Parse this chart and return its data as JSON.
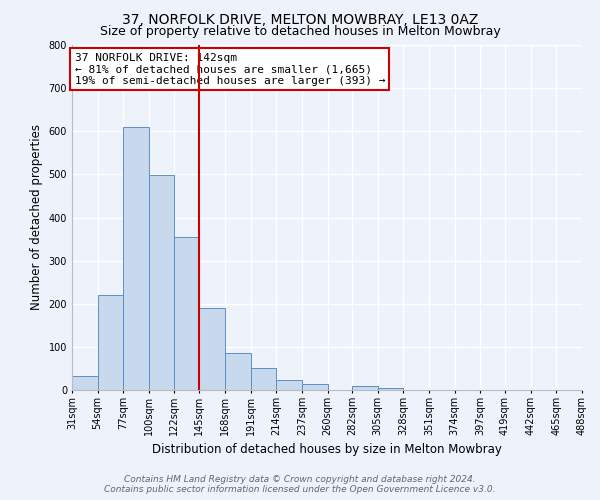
{
  "title": "37, NORFOLK DRIVE, MELTON MOWBRAY, LE13 0AZ",
  "subtitle": "Size of property relative to detached houses in Melton Mowbray",
  "xlabel": "Distribution of detached houses by size in Melton Mowbray",
  "ylabel": "Number of detached properties",
  "bar_color": "#c8d9ee",
  "bar_edge_color": "#5b8fc9",
  "background_color": "#eef2fa",
  "grid_color": "white",
  "bin_edges": [
    31,
    54,
    77,
    100,
    122,
    145,
    168,
    191,
    214,
    237,
    260,
    282,
    305,
    328,
    351,
    374,
    397,
    419,
    442,
    465,
    488
  ],
  "bin_labels": [
    "31sqm",
    "54sqm",
    "77sqm",
    "100sqm",
    "122sqm",
    "145sqm",
    "168sqm",
    "191sqm",
    "214sqm",
    "237sqm",
    "260sqm",
    "282sqm",
    "305sqm",
    "328sqm",
    "351sqm",
    "374sqm",
    "397sqm",
    "419sqm",
    "442sqm",
    "465sqm",
    "488sqm"
  ],
  "bar_heights": [
    33,
    220,
    610,
    498,
    355,
    190,
    85,
    50,
    24,
    14,
    0,
    10,
    5,
    0,
    0,
    0,
    0,
    0,
    0,
    0
  ],
  "ylim": [
    0,
    800
  ],
  "yticks": [
    0,
    100,
    200,
    300,
    400,
    500,
    600,
    700,
    800
  ],
  "vline_x": 145,
  "vline_color": "#cc0000",
  "annotation_title": "37 NORFOLK DRIVE: 142sqm",
  "annotation_line1": "← 81% of detached houses are smaller (1,665)",
  "annotation_line2": "19% of semi-detached houses are larger (393) →",
  "annotation_box_color": "white",
  "annotation_box_edge": "#cc0000",
  "footer_line1": "Contains HM Land Registry data © Crown copyright and database right 2024.",
  "footer_line2": "Contains public sector information licensed under the Open Government Licence v3.0.",
  "title_fontsize": 10,
  "subtitle_fontsize": 9,
  "axis_label_fontsize": 8.5,
  "tick_fontsize": 7,
  "annotation_fontsize": 8,
  "footer_fontsize": 6.5
}
